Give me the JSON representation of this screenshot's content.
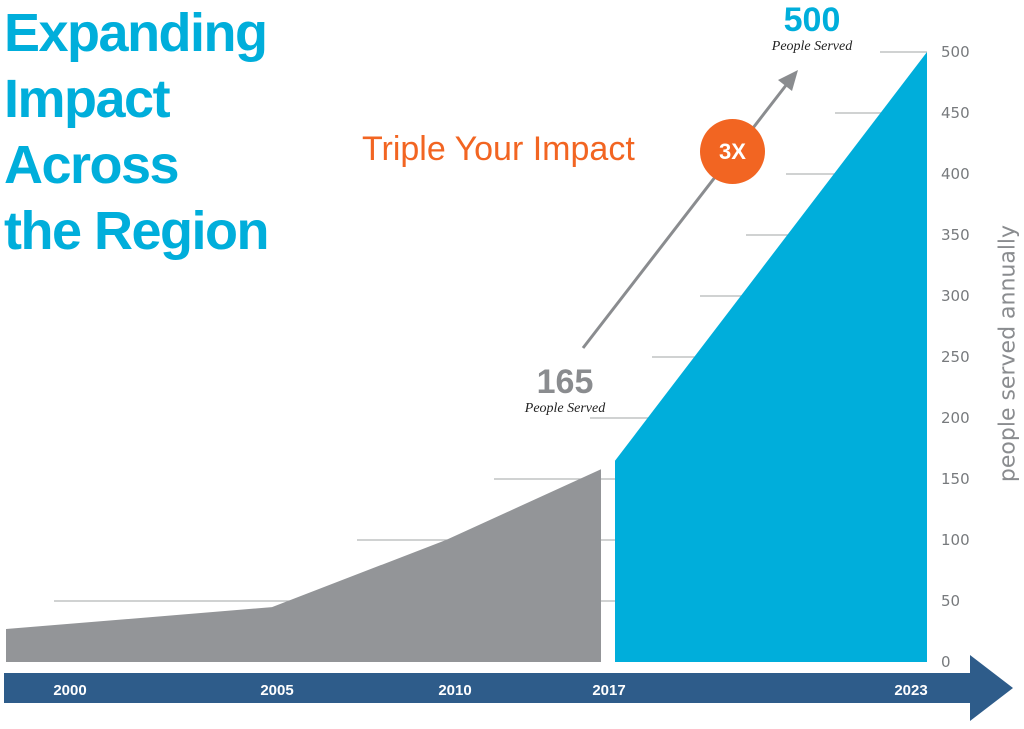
{
  "colors": {
    "brand_blue": "#00aedb",
    "gray_area": "#939598",
    "gray_text": "#8a8c8f",
    "orange": "#f26522",
    "timeline_navy": "#2e5c8a",
    "gridline": "#b5b6b8"
  },
  "headline": {
    "lines": [
      "Expanding",
      "Impact",
      "Across",
      "the Region"
    ]
  },
  "callouts": {
    "triple": {
      "text": "Triple Your Impact",
      "badge": "3X"
    },
    "start": {
      "value": "165",
      "label": "People Served"
    },
    "end": {
      "value": "500",
      "label": "People Served"
    }
  },
  "chart_data": {
    "type": "area",
    "ylabel": "people served annually",
    "ylim": [
      0,
      500
    ],
    "y_ticks": [
      0,
      50,
      100,
      150,
      200,
      250,
      300,
      350,
      400,
      450,
      500
    ],
    "x_tick_labels": [
      "2000",
      "2005",
      "2010",
      "2017",
      "2023"
    ],
    "grid": true,
    "series": [
      {
        "segment": "historical",
        "x": [
          "2000",
          "2005",
          "2010",
          "2017"
        ],
        "values": [
          27,
          45,
          100,
          158
        ]
      },
      {
        "segment": "projected",
        "x": [
          "2017",
          "2023"
        ],
        "values": [
          165,
          500
        ]
      }
    ]
  }
}
